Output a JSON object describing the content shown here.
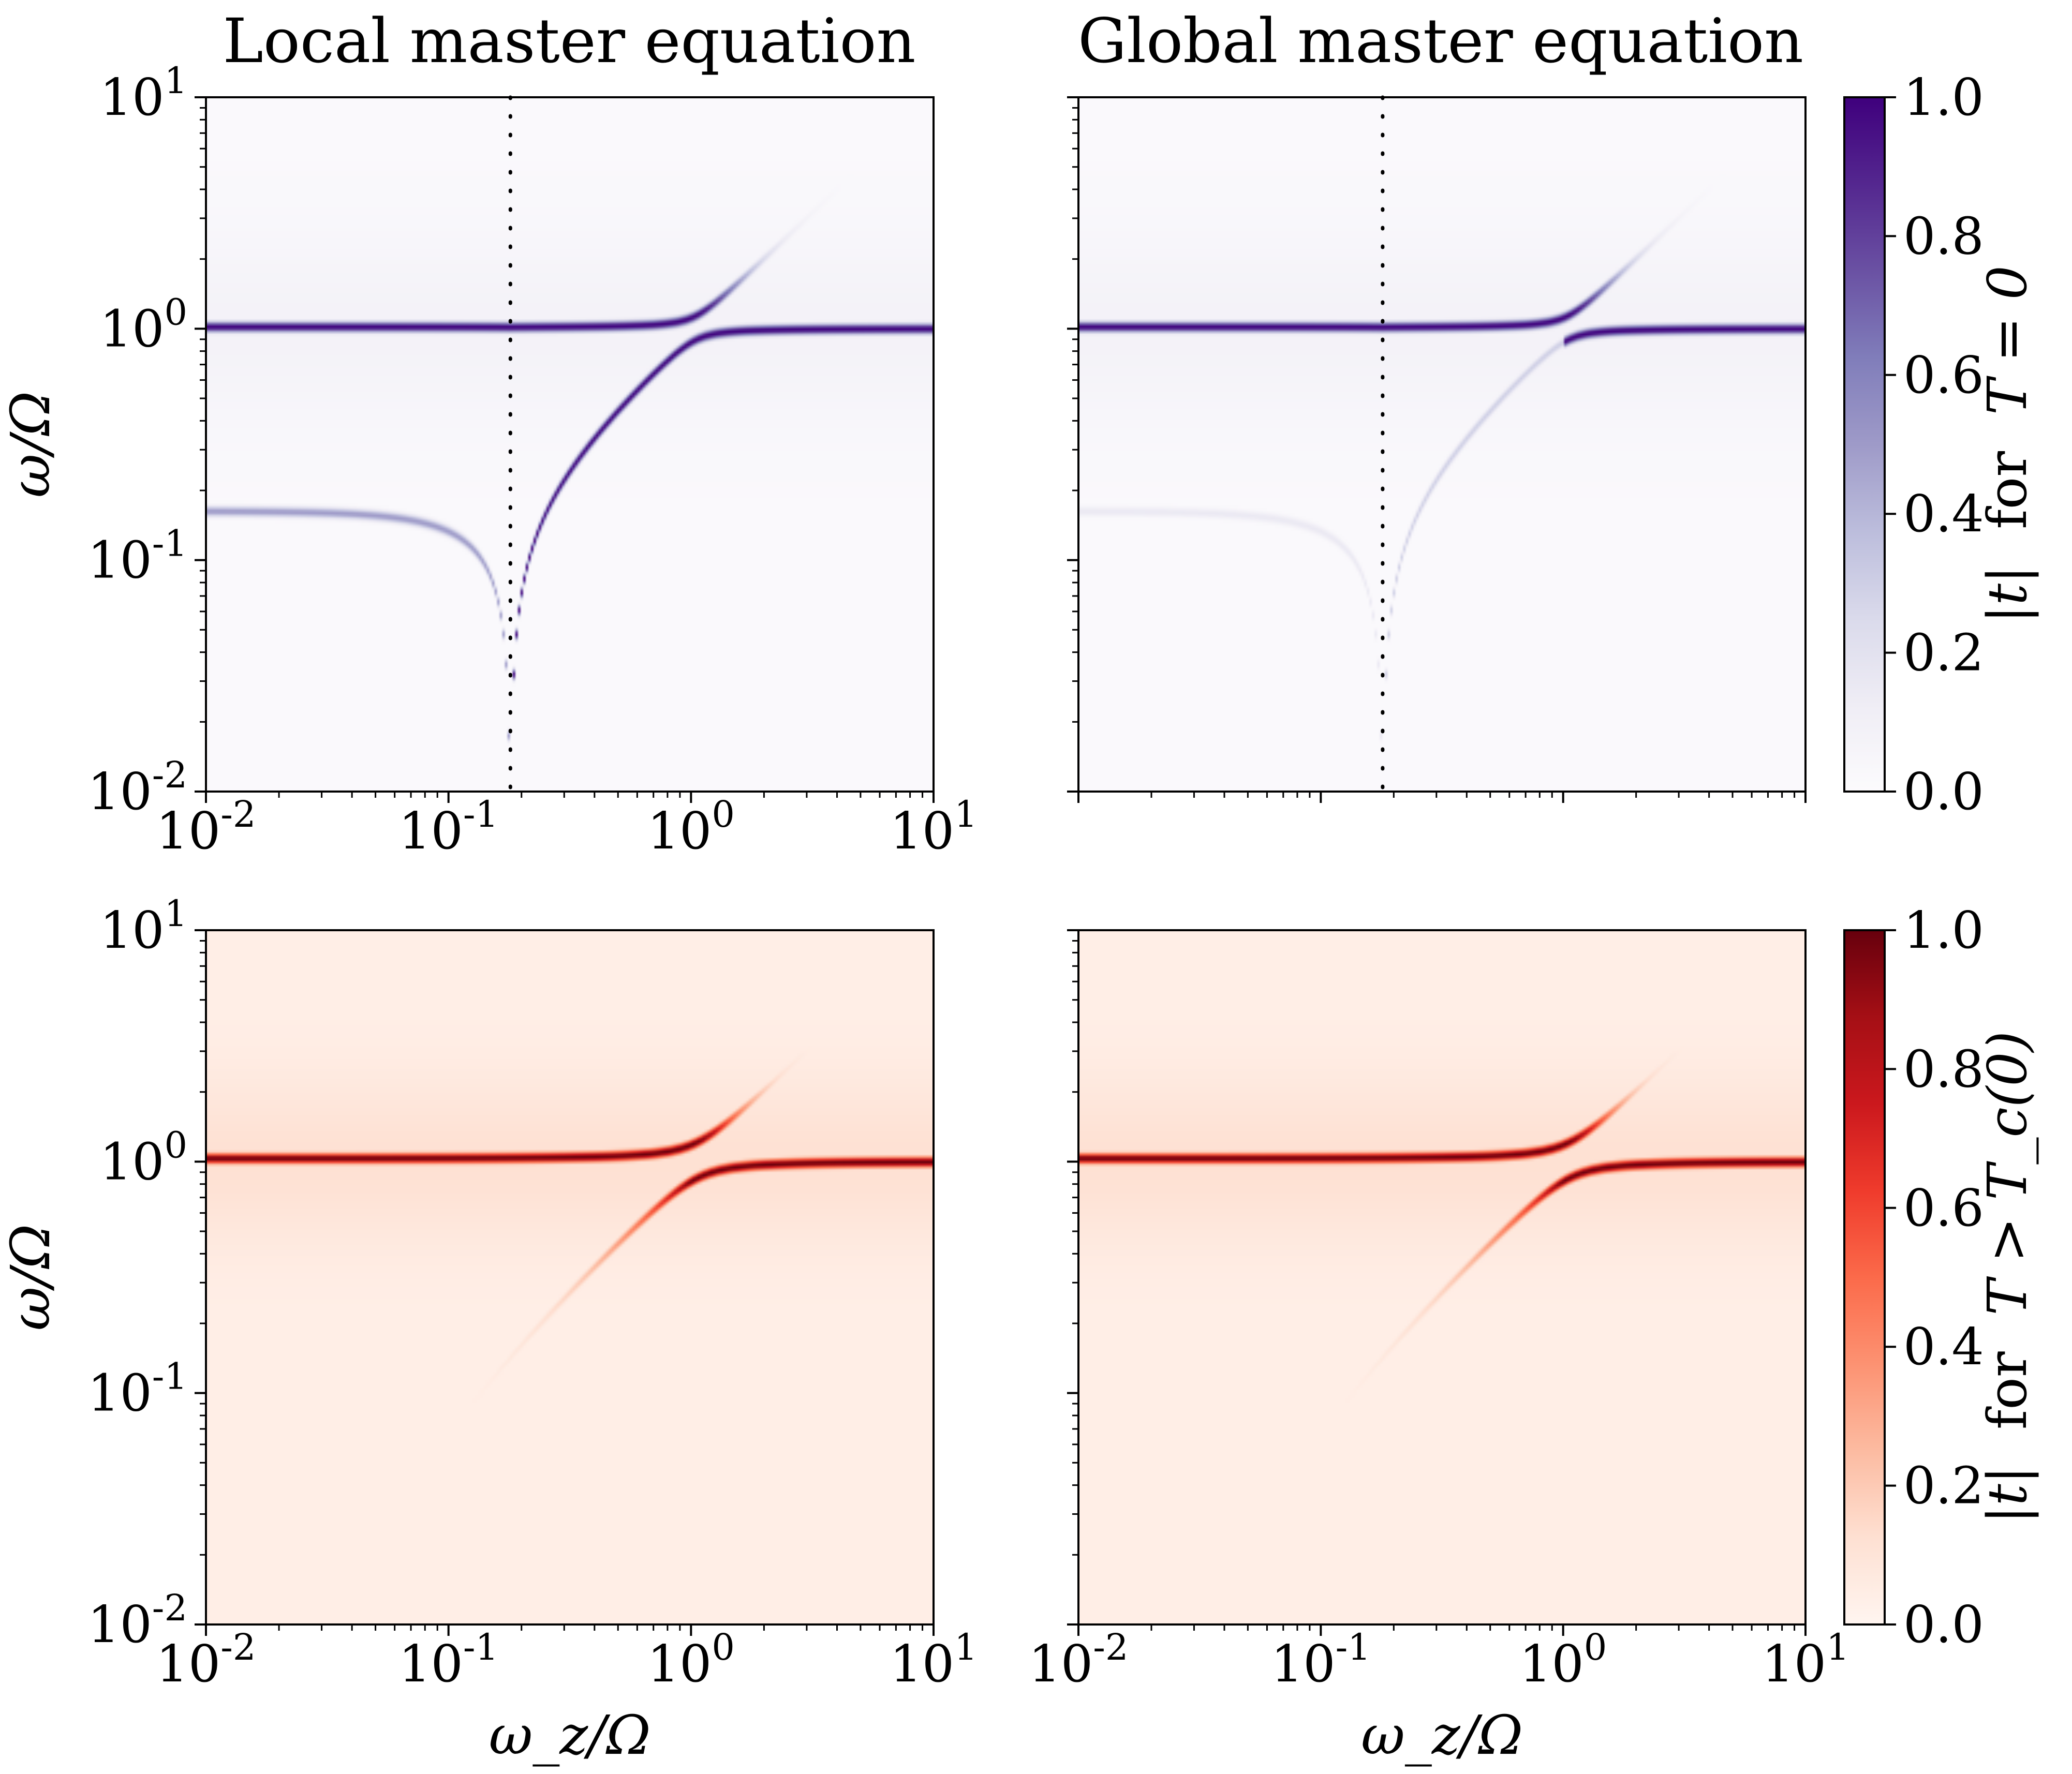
{
  "figure": {
    "titles": [
      "Local master equation",
      "Global master equation"
    ]
  },
  "chart_data": [
    {
      "type": "heatmap",
      "panel": "top-left",
      "title": "Local master equation",
      "xlabel": "",
      "ylabel": "ω/Ω",
      "xscale": "log",
      "yscale": "log",
      "xlim": [
        0.01,
        10
      ],
      "ylim": [
        0.01,
        10
      ],
      "x_ticks": [
        "10^-2",
        "10^-1",
        "10^0",
        "10^1"
      ],
      "y_ticks": [
        "10^1",
        "10^0",
        "10^-1",
        "10^-2"
      ],
      "colormap": "Purples",
      "resonance": {
        "omega_zc": 0.18,
        "coupling_upper": 0.95,
        "gap": 1.0
      },
      "dotted_vline_x": 0.18,
      "diagonal_line": false
    },
    {
      "type": "heatmap",
      "panel": "top-right",
      "title": "Global master equation",
      "xlabel": "",
      "ylabel": "",
      "xscale": "log",
      "yscale": "log",
      "xlim": [
        0.01,
        10
      ],
      "ylim": [
        0.01,
        10
      ],
      "colormap": "Purples",
      "resonance": {
        "omega_zc": 0.18,
        "coupling_upper": 0.95,
        "gap": 1.0
      },
      "dotted_vline_x": 0.18,
      "diagonal_line": false,
      "lower_branch_strength": 0.3
    },
    {
      "type": "heatmap",
      "panel": "bottom-left",
      "title": "",
      "xlabel": "ω_z/Ω",
      "ylabel": "ω/Ω",
      "xscale": "log",
      "yscale": "log",
      "xlim": [
        0.01,
        10
      ],
      "ylim": [
        0.01,
        10
      ],
      "x_ticks": [
        "10^-2",
        "10^-1",
        "10^0",
        "10^1"
      ],
      "y_ticks": [
        "10^1",
        "10^0",
        "10^-1",
        "10^-2"
      ],
      "colormap": "Reds",
      "diagonal_line": true
    },
    {
      "type": "heatmap",
      "panel": "bottom-right",
      "title": "",
      "xlabel": "ω_z/Ω",
      "ylabel": "",
      "xscale": "log",
      "yscale": "log",
      "xlim": [
        0.01,
        10
      ],
      "ylim": [
        0.01,
        10
      ],
      "x_ticks": [
        "10^-2",
        "10^-1",
        "10^0",
        "10^1"
      ],
      "colormap": "Reds",
      "diagonal_line": true
    }
  ],
  "colorbars": [
    {
      "panel": "top",
      "label_parts": [
        "|t|",
        "for",
        "T = 0"
      ],
      "ticks": [
        "0.0",
        "0.2",
        "0.4",
        "0.6",
        "0.8",
        "1.0"
      ],
      "range": [
        0,
        1
      ],
      "colors": [
        "#fcfbfd",
        "#3f007d"
      ]
    },
    {
      "panel": "bottom",
      "label_parts": [
        "|t|",
        "for",
        "T > T_c(0)"
      ],
      "ticks": [
        "0.0",
        "0.2",
        "0.4",
        "0.6",
        "0.8",
        "1.0"
      ],
      "range": [
        0,
        1
      ],
      "colors": [
        "#fff5f0",
        "#67000d"
      ]
    }
  ],
  "axis_text": {
    "xlabel": "ω_z/Ω",
    "ylabel": "ω/Ω",
    "log_ticks": [
      {
        "base": "10",
        "exp": "-2"
      },
      {
        "base": "10",
        "exp": "-1"
      },
      {
        "base": "10",
        "exp": "0"
      },
      {
        "base": "10",
        "exp": "1"
      }
    ]
  }
}
